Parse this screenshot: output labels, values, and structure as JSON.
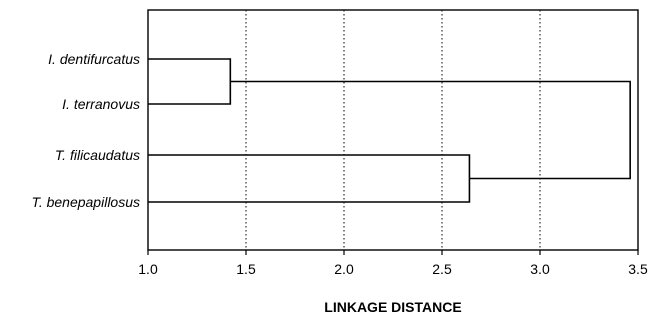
{
  "chart_data": {
    "type": "dendrogram",
    "xlabel": "LINKAGE DISTANCE",
    "xlim": [
      1.0,
      3.5
    ],
    "x_ticks": [
      "1.0",
      "1.5",
      "2.0",
      "2.5",
      "3.0",
      "3.5"
    ],
    "x_tick_values": [
      1.0,
      1.5,
      2.0,
      2.5,
      3.0,
      3.5
    ],
    "grid": true,
    "grid_style": "dotted-vertical",
    "leaves": [
      "I. dentifurcatus",
      "I. terranovus",
      "T. filicaudatus",
      "T. benepapillosus"
    ],
    "merges": [
      {
        "left": 0,
        "right": 1,
        "distance": 1.42
      },
      {
        "left": 2,
        "right": 3,
        "distance": 2.64
      },
      {
        "left": 4,
        "right": 5,
        "distance": 3.46
      }
    ]
  }
}
